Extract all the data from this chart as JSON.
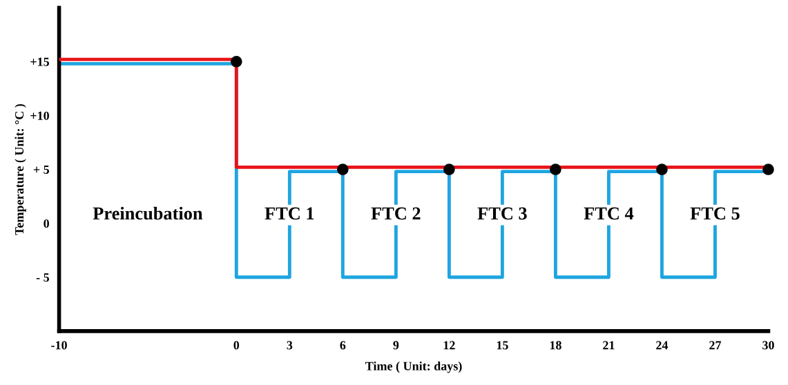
{
  "chart_data": {
    "type": "step",
    "xlabel": "Time ( Unit: days)",
    "ylabel": "Temperature ( Unit: °C )",
    "xlim": [
      -10,
      30
    ],
    "xticks": [
      -10,
      0,
      3,
      6,
      9,
      12,
      15,
      18,
      21,
      24,
      27,
      30
    ],
    "ylim": [
      -10,
      20
    ],
    "yticks": [
      {
        "value": 15,
        "label": "+15"
      },
      {
        "value": 10,
        "label": "+10"
      },
      {
        "value": 5,
        "label": "+ 5"
      },
      0,
      {
        "value": -5,
        "label": "- 5"
      }
    ],
    "grid": false,
    "legend": false,
    "series": [
      {
        "color": "#1ea5e0",
        "x": [
          -10,
          0,
          3,
          6,
          9,
          12,
          15,
          18,
          21,
          24,
          27,
          30
        ],
        "values": [
          14.8,
          -5,
          4.8,
          -5,
          4.8,
          -5,
          4.8,
          -5,
          4.8,
          -5,
          4.8,
          4.8
        ]
      },
      {
        "color": "#e8141a",
        "x": [
          -10,
          0,
          30
        ],
        "values": [
          15.2,
          5.2,
          5.2
        ]
      },
      {
        "type": "scatter",
        "color": "#000000",
        "marker": "circle",
        "x": [
          0,
          6,
          12,
          18,
          24,
          30
        ],
        "values": [
          15,
          5,
          5,
          5,
          5,
          5
        ]
      }
    ],
    "annotations": [
      "Preincubation",
      "FTC 1",
      "FTC 2",
      "FTC 3",
      "FTC 4",
      "FTC 5"
    ]
  }
}
